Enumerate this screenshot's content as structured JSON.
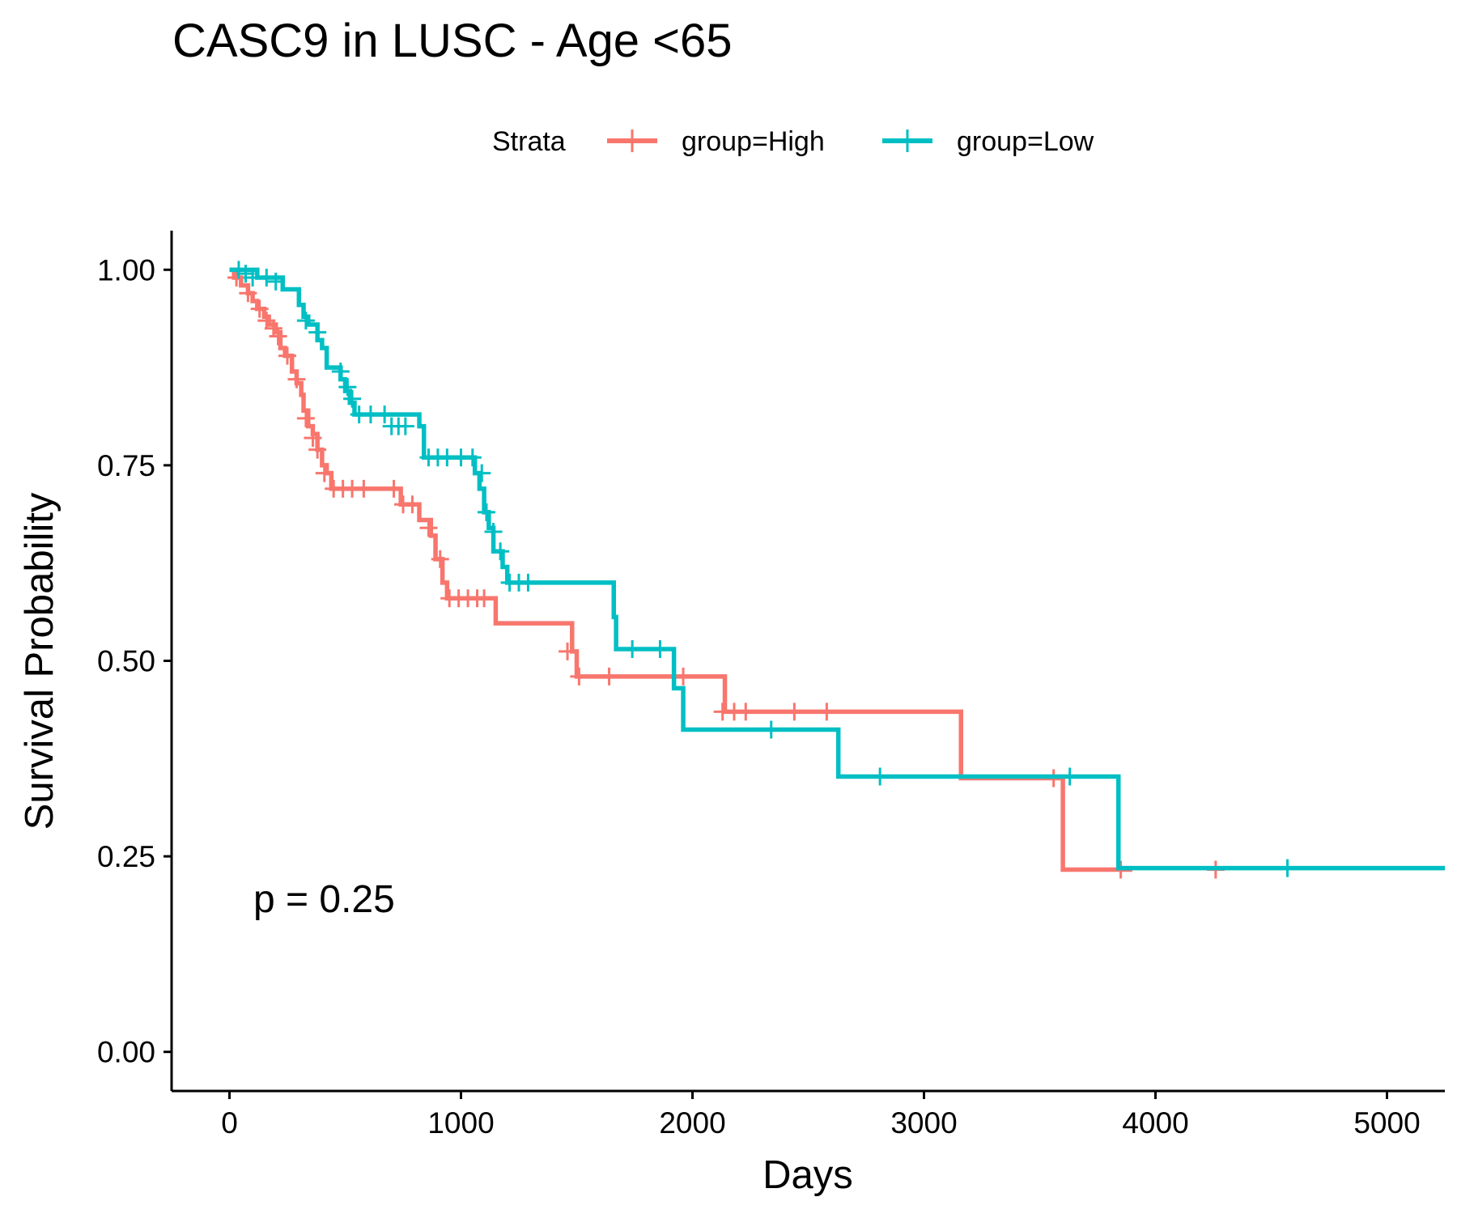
{
  "chart_data": {
    "type": "line",
    "step": true,
    "title": "CASC9 in LUSC - Age <65",
    "xlabel": "Days",
    "ylabel": "Survival Probability",
    "xlim": [
      -250,
      5250
    ],
    "ylim": [
      -0.05,
      1.05
    ],
    "xticks": [
      0,
      1000,
      2000,
      3000,
      4000,
      5000
    ],
    "xtick_labels": [
      "0",
      "1000",
      "2000",
      "3000",
      "4000",
      "5000"
    ],
    "yticks": [
      0,
      0.25,
      0.5,
      0.75,
      1.0
    ],
    "ytick_labels": [
      "0.00",
      "0.25",
      "0.50",
      "0.75",
      "1.00"
    ],
    "grid": false,
    "legend": {
      "title": "Strata",
      "position": "top",
      "entries": [
        "group=High",
        "group=Low"
      ]
    },
    "annotation": "p = 0.25",
    "series": [
      {
        "name": "group=High",
        "color": "#F8766D",
        "steps": [
          [
            0,
            1.0
          ],
          [
            20,
            0.99
          ],
          [
            50,
            0.98
          ],
          [
            80,
            0.97
          ],
          [
            100,
            0.96
          ],
          [
            120,
            0.95
          ],
          [
            150,
            0.94
          ],
          [
            170,
            0.93
          ],
          [
            200,
            0.92
          ],
          [
            220,
            0.9
          ],
          [
            240,
            0.89
          ],
          [
            270,
            0.87
          ],
          [
            290,
            0.855
          ],
          [
            310,
            0.84
          ],
          [
            320,
            0.82
          ],
          [
            340,
            0.8
          ],
          [
            360,
            0.79
          ],
          [
            380,
            0.77
          ],
          [
            400,
            0.75
          ],
          [
            420,
            0.74
          ],
          [
            440,
            0.72
          ],
          [
            740,
            0.7
          ],
          [
            820,
            0.68
          ],
          [
            870,
            0.66
          ],
          [
            890,
            0.63
          ],
          [
            920,
            0.6
          ],
          [
            940,
            0.58
          ],
          [
            1150,
            0.548
          ],
          [
            1480,
            0.512
          ],
          [
            1500,
            0.48
          ],
          [
            2140,
            0.435
          ],
          [
            3160,
            0.35
          ],
          [
            3600,
            0.233
          ]
        ],
        "x_end": 3900,
        "censor": [
          [
            30,
            0.99
          ],
          [
            80,
            0.97
          ],
          [
            130,
            0.95
          ],
          [
            160,
            0.935
          ],
          [
            190,
            0.925
          ],
          [
            210,
            0.915
          ],
          [
            250,
            0.89
          ],
          [
            290,
            0.86
          ],
          [
            330,
            0.81
          ],
          [
            360,
            0.785
          ],
          [
            380,
            0.77
          ],
          [
            410,
            0.74
          ],
          [
            450,
            0.72
          ],
          [
            490,
            0.72
          ],
          [
            530,
            0.72
          ],
          [
            580,
            0.72
          ],
          [
            710,
            0.72
          ],
          [
            750,
            0.7
          ],
          [
            790,
            0.7
          ],
          [
            860,
            0.67
          ],
          [
            910,
            0.63
          ],
          [
            950,
            0.58
          ],
          [
            990,
            0.58
          ],
          [
            1030,
            0.58
          ],
          [
            1070,
            0.58
          ],
          [
            1100,
            0.58
          ],
          [
            1460,
            0.512
          ],
          [
            1510,
            0.48
          ],
          [
            1640,
            0.48
          ],
          [
            1960,
            0.48
          ],
          [
            2130,
            0.435
          ],
          [
            2180,
            0.435
          ],
          [
            2230,
            0.435
          ],
          [
            2440,
            0.435
          ],
          [
            2580,
            0.435
          ],
          [
            3560,
            0.35
          ],
          [
            3850,
            0.233
          ],
          [
            4260,
            0.233
          ]
        ]
      },
      {
        "name": "group=Low",
        "color": "#00BFC4",
        "steps": [
          [
            0,
            1.0
          ],
          [
            120,
            0.99
          ],
          [
            230,
            0.975
          ],
          [
            300,
            0.955
          ],
          [
            320,
            0.94
          ],
          [
            340,
            0.93
          ],
          [
            380,
            0.91
          ],
          [
            400,
            0.9
          ],
          [
            420,
            0.875
          ],
          [
            480,
            0.86
          ],
          [
            500,
            0.845
          ],
          [
            520,
            0.83
          ],
          [
            540,
            0.815
          ],
          [
            820,
            0.8
          ],
          [
            840,
            0.76
          ],
          [
            1060,
            0.74
          ],
          [
            1080,
            0.72
          ],
          [
            1100,
            0.69
          ],
          [
            1120,
            0.67
          ],
          [
            1140,
            0.64
          ],
          [
            1180,
            0.62
          ],
          [
            1200,
            0.6
          ],
          [
            1660,
            0.556
          ],
          [
            1670,
            0.515
          ],
          [
            1920,
            0.465
          ],
          [
            1960,
            0.412
          ],
          [
            2630,
            0.352
          ],
          [
            3840,
            0.235
          ]
        ],
        "x_end": 5250,
        "censor": [
          [
            40,
            1.0
          ],
          [
            70,
            0.995
          ],
          [
            100,
            0.99
          ],
          [
            160,
            0.99
          ],
          [
            200,
            0.985
          ],
          [
            330,
            0.935
          ],
          [
            380,
            0.92
          ],
          [
            480,
            0.87
          ],
          [
            510,
            0.85
          ],
          [
            530,
            0.835
          ],
          [
            560,
            0.815
          ],
          [
            610,
            0.815
          ],
          [
            670,
            0.815
          ],
          [
            700,
            0.8
          ],
          [
            730,
            0.8
          ],
          [
            760,
            0.8
          ],
          [
            860,
            0.76
          ],
          [
            900,
            0.76
          ],
          [
            940,
            0.76
          ],
          [
            1000,
            0.76
          ],
          [
            1050,
            0.76
          ],
          [
            1090,
            0.74
          ],
          [
            1110,
            0.69
          ],
          [
            1140,
            0.665
          ],
          [
            1170,
            0.64
          ],
          [
            1210,
            0.6
          ],
          [
            1250,
            0.6
          ],
          [
            1290,
            0.6
          ],
          [
            1740,
            0.515
          ],
          [
            1860,
            0.515
          ],
          [
            2340,
            0.412
          ],
          [
            2810,
            0.352
          ],
          [
            3630,
            0.352
          ],
          [
            4570,
            0.235
          ]
        ]
      }
    ]
  }
}
